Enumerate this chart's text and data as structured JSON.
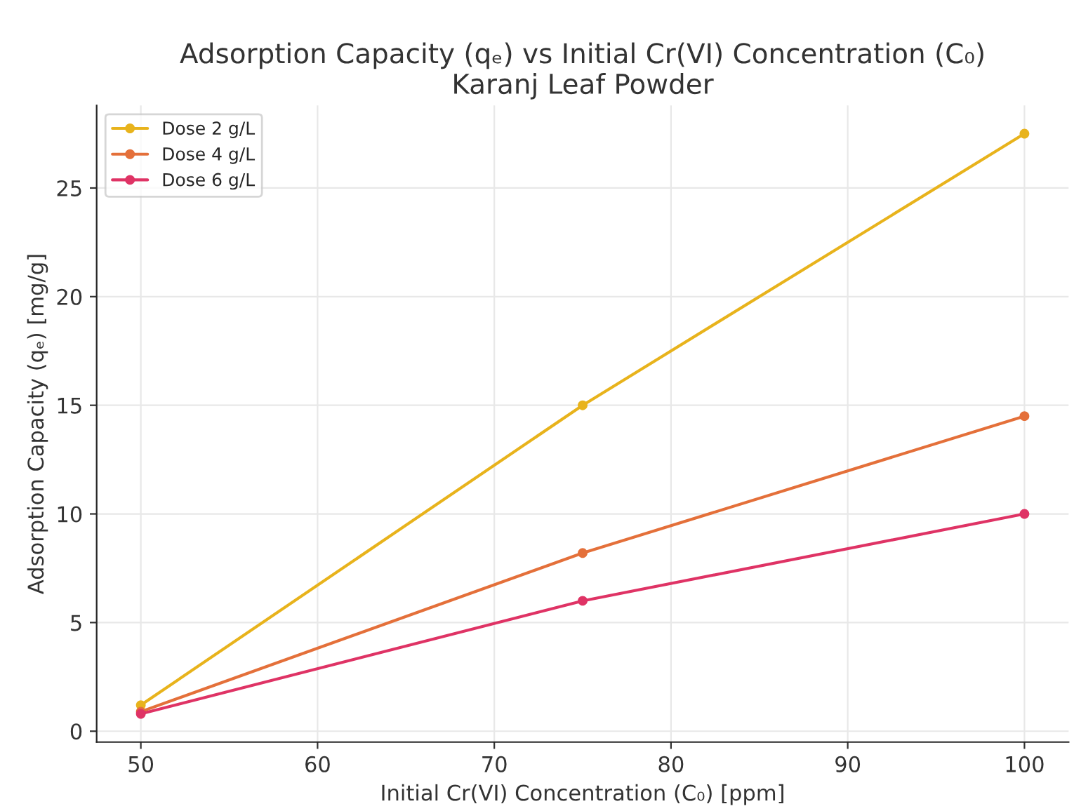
{
  "chart_data": {
    "type": "line",
    "title": "Adsorption Capacity (qₑ) vs Initial Cr(VI) Concentration (C₀)\nKaranj Leaf Powder",
    "xlabel": "Initial Cr(VI) Concentration (C₀) [ppm]",
    "ylabel": "Adsorption Capacity (qₑ) [mg/g]",
    "x": [
      50,
      75,
      100
    ],
    "series": [
      {
        "name": "Dose 2 g/L",
        "color": "#e8b31c",
        "values": [
          1.2,
          15.0,
          27.5
        ]
      },
      {
        "name": "Dose 4 g/L",
        "color": "#e4703a",
        "values": [
          0.9,
          8.2,
          14.5
        ]
      },
      {
        "name": "Dose 6 g/L",
        "color": "#df3365",
        "values": [
          0.8,
          6.0,
          10.0
        ]
      }
    ],
    "xlim": [
      47.5,
      102.5
    ],
    "ylim": [
      -0.5,
      28.8
    ],
    "xticks": [
      50,
      60,
      70,
      80,
      90,
      100
    ],
    "yticks": [
      0,
      5,
      10,
      15,
      20,
      25
    ],
    "grid": true,
    "legend": "top left",
    "marker": "circle",
    "line_style": "solid"
  }
}
